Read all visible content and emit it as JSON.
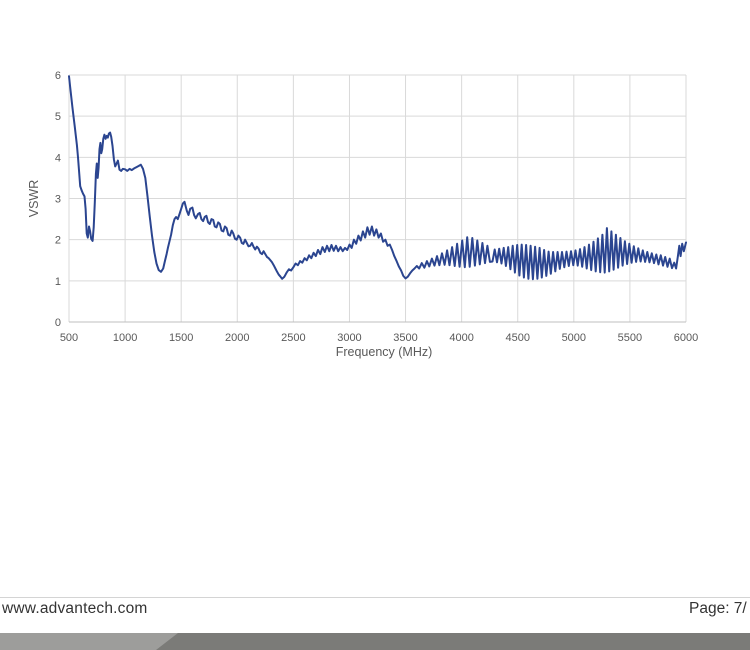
{
  "footer": {
    "website": "www.advantech.com",
    "page_label": "Page: 7/"
  },
  "colors": {
    "line": "#2b4590",
    "grid": "#d9d9d9",
    "axis": "#bfbfbf",
    "tick_text": "#595959",
    "footer_rule": "#d4d4d4",
    "footer_text": "#333333",
    "footer_bar_light": "#9d9d9b",
    "footer_bar_dark": "#7b7b78"
  },
  "chart_data": {
    "type": "line",
    "title": "",
    "xlabel": "Frequency (MHz)",
    "ylabel": "VSWR",
    "xlim": [
      500,
      6000
    ],
    "ylim": [
      0,
      6
    ],
    "x_ticks": [
      500,
      1000,
      1500,
      2000,
      2500,
      3000,
      3500,
      4000,
      4500,
      5000,
      5500,
      6000
    ],
    "y_ticks": [
      0,
      1,
      2,
      3,
      4,
      5,
      6
    ],
    "grid": true,
    "legend": "none",
    "series": [
      {
        "name": "VSWR",
        "color": "#2b4590",
        "points": [
          [
            500,
            5.97
          ],
          [
            510,
            5.72
          ],
          [
            520,
            5.48
          ],
          [
            530,
            5.22
          ],
          [
            540,
            5.0
          ],
          [
            550,
            4.78
          ],
          [
            560,
            4.55
          ],
          [
            570,
            4.3
          ],
          [
            580,
            4.0
          ],
          [
            590,
            3.65
          ],
          [
            600,
            3.3
          ],
          [
            612,
            3.2
          ],
          [
            625,
            3.12
          ],
          [
            638,
            3.05
          ],
          [
            648,
            2.75
          ],
          [
            658,
            2.15
          ],
          [
            668,
            2.05
          ],
          [
            678,
            2.32
          ],
          [
            688,
            2.2
          ],
          [
            698,
            2.02
          ],
          [
            710,
            1.97
          ],
          [
            720,
            2.3
          ],
          [
            730,
            2.9
          ],
          [
            740,
            3.6
          ],
          [
            748,
            3.85
          ],
          [
            756,
            3.5
          ],
          [
            764,
            3.75
          ],
          [
            772,
            4.2
          ],
          [
            780,
            4.35
          ],
          [
            788,
            4.1
          ],
          [
            796,
            4.2
          ],
          [
            806,
            4.45
          ],
          [
            816,
            4.55
          ],
          [
            826,
            4.45
          ],
          [
            836,
            4.52
          ],
          [
            846,
            4.48
          ],
          [
            856,
            4.58
          ],
          [
            866,
            4.6
          ],
          [
            876,
            4.5
          ],
          [
            888,
            4.28
          ],
          [
            900,
            3.95
          ],
          [
            912,
            3.78
          ],
          [
            924,
            3.85
          ],
          [
            936,
            3.92
          ],
          [
            950,
            3.7
          ],
          [
            965,
            3.67
          ],
          [
            980,
            3.72
          ],
          [
            1000,
            3.71
          ],
          [
            1020,
            3.67
          ],
          [
            1040,
            3.72
          ],
          [
            1060,
            3.69
          ],
          [
            1080,
            3.73
          ],
          [
            1100,
            3.76
          ],
          [
            1120,
            3.79
          ],
          [
            1140,
            3.82
          ],
          [
            1160,
            3.72
          ],
          [
            1180,
            3.5
          ],
          [
            1200,
            3.05
          ],
          [
            1220,
            2.55
          ],
          [
            1240,
            2.1
          ],
          [
            1260,
            1.7
          ],
          [
            1280,
            1.42
          ],
          [
            1300,
            1.26
          ],
          [
            1320,
            1.22
          ],
          [
            1340,
            1.3
          ],
          [
            1355,
            1.48
          ],
          [
            1370,
            1.65
          ],
          [
            1382,
            1.8
          ],
          [
            1395,
            1.95
          ],
          [
            1410,
            2.12
          ],
          [
            1425,
            2.35
          ],
          [
            1440,
            2.5
          ],
          [
            1455,
            2.55
          ],
          [
            1470,
            2.5
          ],
          [
            1485,
            2.62
          ],
          [
            1500,
            2.75
          ],
          [
            1515,
            2.88
          ],
          [
            1530,
            2.92
          ],
          [
            1550,
            2.7
          ],
          [
            1565,
            2.6
          ],
          [
            1580,
            2.75
          ],
          [
            1600,
            2.78
          ],
          [
            1615,
            2.6
          ],
          [
            1630,
            2.52
          ],
          [
            1650,
            2.62
          ],
          [
            1665,
            2.65
          ],
          [
            1680,
            2.5
          ],
          [
            1695,
            2.45
          ],
          [
            1710,
            2.55
          ],
          [
            1725,
            2.58
          ],
          [
            1740,
            2.42
          ],
          [
            1755,
            2.38
          ],
          [
            1770,
            2.5
          ],
          [
            1785,
            2.48
          ],
          [
            1800,
            2.32
          ],
          [
            1815,
            2.3
          ],
          [
            1830,
            2.42
          ],
          [
            1845,
            2.38
          ],
          [
            1860,
            2.22
          ],
          [
            1875,
            2.2
          ],
          [
            1890,
            2.32
          ],
          [
            1905,
            2.28
          ],
          [
            1920,
            2.12
          ],
          [
            1935,
            2.1
          ],
          [
            1950,
            2.22
          ],
          [
            1965,
            2.15
          ],
          [
            1980,
            2.02
          ],
          [
            1995,
            2.0
          ],
          [
            2010,
            2.1
          ],
          [
            2025,
            2.05
          ],
          [
            2040,
            1.92
          ],
          [
            2055,
            1.9
          ],
          [
            2070,
            2.0
          ],
          [
            2085,
            1.92
          ],
          [
            2100,
            1.84
          ],
          [
            2115,
            1.85
          ],
          [
            2130,
            1.92
          ],
          [
            2145,
            1.83
          ],
          [
            2160,
            1.76
          ],
          [
            2175,
            1.83
          ],
          [
            2190,
            1.78
          ],
          [
            2205,
            1.68
          ],
          [
            2220,
            1.65
          ],
          [
            2235,
            1.72
          ],
          [
            2250,
            1.65
          ],
          [
            2265,
            1.58
          ],
          [
            2280,
            1.55
          ],
          [
            2295,
            1.5
          ],
          [
            2310,
            1.45
          ],
          [
            2325,
            1.38
          ],
          [
            2340,
            1.3
          ],
          [
            2355,
            1.22
          ],
          [
            2370,
            1.15
          ],
          [
            2385,
            1.1
          ],
          [
            2400,
            1.05
          ],
          [
            2420,
            1.1
          ],
          [
            2440,
            1.2
          ],
          [
            2460,
            1.28
          ],
          [
            2480,
            1.25
          ],
          [
            2500,
            1.33
          ],
          [
            2520,
            1.42
          ],
          [
            2540,
            1.38
          ],
          [
            2560,
            1.48
          ],
          [
            2580,
            1.44
          ],
          [
            2600,
            1.55
          ],
          [
            2620,
            1.5
          ],
          [
            2640,
            1.62
          ],
          [
            2660,
            1.55
          ],
          [
            2680,
            1.68
          ],
          [
            2700,
            1.6
          ],
          [
            2720,
            1.75
          ],
          [
            2740,
            1.65
          ],
          [
            2760,
            1.82
          ],
          [
            2780,
            1.7
          ],
          [
            2800,
            1.85
          ],
          [
            2820,
            1.72
          ],
          [
            2840,
            1.87
          ],
          [
            2860,
            1.73
          ],
          [
            2880,
            1.85
          ],
          [
            2900,
            1.72
          ],
          [
            2920,
            1.82
          ],
          [
            2940,
            1.72
          ],
          [
            2960,
            1.8
          ],
          [
            2980,
            1.75
          ],
          [
            3000,
            1.88
          ],
          [
            3020,
            1.8
          ],
          [
            3040,
            2.0
          ],
          [
            3060,
            1.9
          ],
          [
            3080,
            2.1
          ],
          [
            3100,
            1.98
          ],
          [
            3120,
            2.2
          ],
          [
            3140,
            2.05
          ],
          [
            3160,
            2.3
          ],
          [
            3180,
            2.12
          ],
          [
            3200,
            2.32
          ],
          [
            3220,
            2.1
          ],
          [
            3240,
            2.25
          ],
          [
            3260,
            2.05
          ],
          [
            3280,
            2.15
          ],
          [
            3300,
            1.95
          ],
          [
            3320,
            2.0
          ],
          [
            3340,
            1.85
          ],
          [
            3360,
            1.88
          ],
          [
            3380,
            1.75
          ],
          [
            3400,
            1.6
          ],
          [
            3420,
            1.48
          ],
          [
            3440,
            1.35
          ],
          [
            3460,
            1.25
          ],
          [
            3480,
            1.12
          ],
          [
            3500,
            1.06
          ],
          [
            3520,
            1.1
          ],
          [
            3540,
            1.18
          ],
          [
            3560,
            1.25
          ],
          [
            3580,
            1.3
          ],
          [
            3600,
            1.36
          ],
          [
            3622,
            1.3
          ],
          [
            3645,
            1.43
          ],
          [
            3668,
            1.32
          ],
          [
            3690,
            1.48
          ],
          [
            3712,
            1.35
          ],
          [
            3735,
            1.54
          ],
          [
            3758,
            1.37
          ],
          [
            3780,
            1.6
          ],
          [
            3802,
            1.38
          ],
          [
            3825,
            1.67
          ],
          [
            3848,
            1.39
          ],
          [
            3870,
            1.74
          ],
          [
            3892,
            1.38
          ],
          [
            3915,
            1.82
          ],
          [
            3938,
            1.36
          ],
          [
            3960,
            1.9
          ],
          [
            3982,
            1.34
          ],
          [
            4005,
            1.98
          ],
          [
            4028,
            1.33
          ],
          [
            4050,
            2.06
          ],
          [
            4072,
            1.34
          ],
          [
            4095,
            2.04
          ],
          [
            4118,
            1.37
          ],
          [
            4140,
            1.98
          ],
          [
            4162,
            1.4
          ],
          [
            4185,
            1.92
          ],
          [
            4208,
            1.43
          ],
          [
            4230,
            1.85
          ],
          [
            4252,
            1.46
          ],
          [
            4275,
            1.47
          ],
          [
            4295,
            1.76
          ],
          [
            4315,
            1.45
          ],
          [
            4335,
            1.78
          ],
          [
            4355,
            1.42
          ],
          [
            4375,
            1.8
          ],
          [
            4395,
            1.36
          ],
          [
            4415,
            1.82
          ],
          [
            4435,
            1.28
          ],
          [
            4455,
            1.85
          ],
          [
            4475,
            1.2
          ],
          [
            4495,
            1.87
          ],
          [
            4515,
            1.13
          ],
          [
            4535,
            1.88
          ],
          [
            4555,
            1.08
          ],
          [
            4575,
            1.87
          ],
          [
            4595,
            1.05
          ],
          [
            4615,
            1.85
          ],
          [
            4635,
            1.04
          ],
          [
            4655,
            1.83
          ],
          [
            4675,
            1.05
          ],
          [
            4695,
            1.8
          ],
          [
            4715,
            1.08
          ],
          [
            4735,
            1.75
          ],
          [
            4755,
            1.12
          ],
          [
            4775,
            1.71
          ],
          [
            4795,
            1.17
          ],
          [
            4815,
            1.7
          ],
          [
            4835,
            1.23
          ],
          [
            4855,
            1.7
          ],
          [
            4875,
            1.29
          ],
          [
            4895,
            1.7
          ],
          [
            4915,
            1.33
          ],
          [
            4935,
            1.71
          ],
          [
            4955,
            1.36
          ],
          [
            4975,
            1.72
          ],
          [
            4995,
            1.38
          ],
          [
            5015,
            1.74
          ],
          [
            5035,
            1.37
          ],
          [
            5055,
            1.77
          ],
          [
            5075,
            1.34
          ],
          [
            5095,
            1.82
          ],
          [
            5115,
            1.3
          ],
          [
            5135,
            1.88
          ],
          [
            5155,
            1.26
          ],
          [
            5175,
            1.95
          ],
          [
            5195,
            1.23
          ],
          [
            5215,
            2.03
          ],
          [
            5235,
            1.21
          ],
          [
            5255,
            2.12
          ],
          [
            5275,
            1.2
          ],
          [
            5295,
            2.28
          ],
          [
            5315,
            1.23
          ],
          [
            5335,
            2.2
          ],
          [
            5355,
            1.27
          ],
          [
            5375,
            2.12
          ],
          [
            5395,
            1.32
          ],
          [
            5415,
            2.04
          ],
          [
            5435,
            1.37
          ],
          [
            5455,
            1.96
          ],
          [
            5475,
            1.41
          ],
          [
            5495,
            1.9
          ],
          [
            5515,
            1.44
          ],
          [
            5535,
            1.84
          ],
          [
            5555,
            1.46
          ],
          [
            5575,
            1.79
          ],
          [
            5595,
            1.47
          ],
          [
            5615,
            1.74
          ],
          [
            5635,
            1.46
          ],
          [
            5655,
            1.7
          ],
          [
            5675,
            1.45
          ],
          [
            5695,
            1.67
          ],
          [
            5715,
            1.43
          ],
          [
            5735,
            1.64
          ],
          [
            5755,
            1.4
          ],
          [
            5775,
            1.62
          ],
          [
            5795,
            1.37
          ],
          [
            5815,
            1.58
          ],
          [
            5835,
            1.34
          ],
          [
            5855,
            1.54
          ],
          [
            5875,
            1.31
          ],
          [
            5895,
            1.44
          ],
          [
            5912,
            1.3
          ],
          [
            5928,
            1.6
          ],
          [
            5940,
            1.85
          ],
          [
            5952,
            1.6
          ],
          [
            5966,
            1.9
          ],
          [
            5980,
            1.72
          ],
          [
            6000,
            1.93
          ]
        ]
      }
    ]
  }
}
